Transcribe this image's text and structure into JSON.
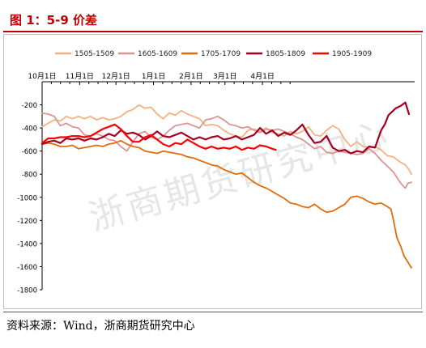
{
  "title": "图 1：5-9 价差",
  "source": "资料来源：Wind，浙商期货研究中心",
  "watermark": "浙商期货研究中心",
  "chart_data": {
    "type": "line",
    "title": "图 1：5-9 价差",
    "xlabel": "",
    "ylabel": "",
    "x_ticks": [
      "10月1日",
      "11月1日",
      "12月1日",
      "1月1日",
      "2月1日",
      "3月1日",
      "4月1日"
    ],
    "ylim": [
      -1800,
      0
    ],
    "y_ticks": [
      -200,
      -400,
      -600,
      -800,
      -1000,
      -1200,
      -1400,
      -1600,
      -1800
    ],
    "grid": false,
    "legend_position": "top",
    "series": [
      {
        "name": "1505-1509",
        "color": "#f4b183",
        "points": [
          [
            0,
            -390
          ],
          [
            5,
            -360
          ],
          [
            10,
            -330
          ],
          [
            15,
            -340
          ],
          [
            20,
            -300
          ],
          [
            25,
            -320
          ],
          [
            30,
            -300
          ],
          [
            35,
            -320
          ],
          [
            40,
            -300
          ],
          [
            45,
            -330
          ],
          [
            50,
            -310
          ],
          [
            55,
            -330
          ],
          [
            60,
            -320
          ],
          [
            65,
            -300
          ],
          [
            70,
            -260
          ],
          [
            75,
            -240
          ],
          [
            80,
            -200
          ],
          [
            85,
            -230
          ],
          [
            90,
            -220
          ],
          [
            95,
            -280
          ],
          [
            100,
            -320
          ],
          [
            105,
            -270
          ],
          [
            110,
            -290
          ],
          [
            115,
            -250
          ],
          [
            120,
            -280
          ],
          [
            125,
            -300
          ],
          [
            130,
            -320
          ],
          [
            135,
            -380
          ],
          [
            140,
            -370
          ],
          [
            145,
            -380
          ],
          [
            150,
            -420
          ],
          [
            155,
            -450
          ],
          [
            160,
            -470
          ],
          [
            165,
            -480
          ],
          [
            170,
            -420
          ],
          [
            175,
            -410
          ],
          [
            180,
            -430
          ],
          [
            185,
            -400
          ],
          [
            190,
            -440
          ],
          [
            195,
            -450
          ],
          [
            200,
            -470
          ],
          [
            205,
            -430
          ],
          [
            210,
            -450
          ],
          [
            215,
            -430
          ],
          [
            220,
            -390
          ],
          [
            225,
            -460
          ],
          [
            230,
            -470
          ],
          [
            235,
            -420
          ],
          [
            240,
            -380
          ],
          [
            245,
            -410
          ],
          [
            250,
            -500
          ],
          [
            255,
            -560
          ],
          [
            260,
            -520
          ],
          [
            265,
            -560
          ],
          [
            270,
            -570
          ],
          [
            275,
            -560
          ],
          [
            280,
            -590
          ],
          [
            285,
            -640
          ],
          [
            290,
            -650
          ],
          [
            295,
            -690
          ],
          [
            300,
            -720
          ],
          [
            303,
            -760
          ],
          [
            305,
            -800
          ]
        ]
      },
      {
        "name": "1605-1609",
        "color": "#d99594",
        "points": [
          [
            0,
            -270
          ],
          [
            5,
            -280
          ],
          [
            10,
            -300
          ],
          [
            15,
            -380
          ],
          [
            20,
            -360
          ],
          [
            25,
            -390
          ],
          [
            30,
            -400
          ],
          [
            35,
            -460
          ],
          [
            40,
            -470
          ],
          [
            45,
            -450
          ],
          [
            50,
            -470
          ],
          [
            55,
            -500
          ],
          [
            60,
            -510
          ],
          [
            65,
            -560
          ],
          [
            70,
            -600
          ],
          [
            75,
            -520
          ],
          [
            80,
            -450
          ],
          [
            85,
            -430
          ],
          [
            90,
            -480
          ],
          [
            95,
            -500
          ],
          [
            100,
            -470
          ],
          [
            105,
            -420
          ],
          [
            110,
            -380
          ],
          [
            115,
            -370
          ],
          [
            120,
            -360
          ],
          [
            125,
            -380
          ],
          [
            130,
            -400
          ],
          [
            135,
            -330
          ],
          [
            140,
            -320
          ],
          [
            145,
            -300
          ],
          [
            150,
            -330
          ],
          [
            155,
            -370
          ],
          [
            160,
            -380
          ],
          [
            165,
            -400
          ],
          [
            170,
            -390
          ],
          [
            175,
            -420
          ],
          [
            180,
            -440
          ],
          [
            185,
            -410
          ],
          [
            190,
            -420
          ],
          [
            195,
            -410
          ],
          [
            200,
            -430
          ],
          [
            205,
            -450
          ],
          [
            210,
            -480
          ],
          [
            215,
            -500
          ],
          [
            220,
            -540
          ],
          [
            225,
            -580
          ],
          [
            230,
            -560
          ],
          [
            235,
            -610
          ],
          [
            240,
            -620
          ],
          [
            245,
            -600
          ],
          [
            250,
            -610
          ],
          [
            255,
            -620
          ],
          [
            260,
            -630
          ],
          [
            265,
            -620
          ],
          [
            270,
            -580
          ],
          [
            275,
            -620
          ],
          [
            280,
            -680
          ],
          [
            285,
            -730
          ],
          [
            290,
            -780
          ],
          [
            295,
            -860
          ],
          [
            298,
            -900
          ],
          [
            300,
            -920
          ],
          [
            302,
            -880
          ],
          [
            305,
            -870
          ]
        ]
      },
      {
        "name": "1705-1709",
        "color": "#e36c09",
        "points": [
          [
            0,
            -540
          ],
          [
            5,
            -530
          ],
          [
            10,
            -540
          ],
          [
            15,
            -560
          ],
          [
            20,
            -560
          ],
          [
            25,
            -550
          ],
          [
            30,
            -580
          ],
          [
            35,
            -570
          ],
          [
            40,
            -560
          ],
          [
            45,
            -550
          ],
          [
            50,
            -560
          ],
          [
            55,
            -540
          ],
          [
            60,
            -530
          ],
          [
            65,
            -510
          ],
          [
            70,
            -540
          ],
          [
            75,
            -560
          ],
          [
            80,
            -570
          ],
          [
            85,
            -600
          ],
          [
            90,
            -610
          ],
          [
            95,
            -620
          ],
          [
            100,
            -600
          ],
          [
            105,
            -610
          ],
          [
            110,
            -620
          ],
          [
            115,
            -630
          ],
          [
            120,
            -650
          ],
          [
            125,
            -660
          ],
          [
            130,
            -680
          ],
          [
            135,
            -700
          ],
          [
            140,
            -720
          ],
          [
            145,
            -730
          ],
          [
            150,
            -760
          ],
          [
            155,
            -780
          ],
          [
            160,
            -800
          ],
          [
            165,
            -790
          ],
          [
            170,
            -830
          ],
          [
            175,
            -870
          ],
          [
            180,
            -900
          ],
          [
            185,
            -920
          ],
          [
            190,
            -950
          ],
          [
            195,
            -980
          ],
          [
            200,
            -1010
          ],
          [
            205,
            -1050
          ],
          [
            210,
            -1060
          ],
          [
            215,
            -1080
          ],
          [
            220,
            -1090
          ],
          [
            225,
            -1060
          ],
          [
            230,
            -1100
          ],
          [
            235,
            -1130
          ],
          [
            240,
            -1120
          ],
          [
            245,
            -1090
          ],
          [
            250,
            -1060
          ],
          [
            255,
            -1000
          ],
          [
            260,
            -990
          ],
          [
            265,
            -1010
          ],
          [
            270,
            -1040
          ],
          [
            275,
            -1060
          ],
          [
            280,
            -1050
          ],
          [
            285,
            -1080
          ],
          [
            288,
            -1100
          ],
          [
            290,
            -1190
          ],
          [
            293,
            -1350
          ],
          [
            296,
            -1420
          ],
          [
            299,
            -1510
          ],
          [
            302,
            -1560
          ],
          [
            305,
            -1610
          ]
        ]
      },
      {
        "name": "1805-1809",
        "color": "#a50021",
        "points": [
          [
            0,
            -540
          ],
          [
            5,
            -520
          ],
          [
            10,
            -510
          ],
          [
            15,
            -530
          ],
          [
            20,
            -490
          ],
          [
            25,
            -500
          ],
          [
            30,
            -490
          ],
          [
            35,
            -510
          ],
          [
            40,
            -490
          ],
          [
            45,
            -500
          ],
          [
            50,
            -480
          ],
          [
            55,
            -450
          ],
          [
            60,
            -470
          ],
          [
            65,
            -420
          ],
          [
            70,
            -450
          ],
          [
            75,
            -440
          ],
          [
            80,
            -460
          ],
          [
            85,
            -500
          ],
          [
            90,
            -470
          ],
          [
            95,
            -430
          ],
          [
            100,
            -470
          ],
          [
            105,
            -480
          ],
          [
            110,
            -460
          ],
          [
            115,
            -440
          ],
          [
            120,
            -470
          ],
          [
            125,
            -500
          ],
          [
            130,
            -480
          ],
          [
            135,
            -500
          ],
          [
            140,
            -480
          ],
          [
            145,
            -470
          ],
          [
            150,
            -500
          ],
          [
            155,
            -490
          ],
          [
            160,
            -470
          ],
          [
            165,
            -500
          ],
          [
            170,
            -480
          ],
          [
            175,
            -460
          ],
          [
            180,
            -400
          ],
          [
            185,
            -450
          ],
          [
            190,
            -420
          ],
          [
            195,
            -470
          ],
          [
            200,
            -440
          ],
          [
            205,
            -460
          ],
          [
            210,
            -420
          ],
          [
            215,
            -370
          ],
          [
            220,
            -460
          ],
          [
            225,
            -530
          ],
          [
            230,
            -520
          ],
          [
            235,
            -470
          ],
          [
            240,
            -570
          ],
          [
            245,
            -600
          ],
          [
            250,
            -590
          ],
          [
            255,
            -620
          ],
          [
            260,
            -600
          ],
          [
            265,
            -610
          ],
          [
            270,
            -560
          ],
          [
            275,
            -570
          ],
          [
            280,
            -420
          ],
          [
            283,
            -370
          ],
          [
            286,
            -290
          ],
          [
            289,
            -260
          ],
          [
            292,
            -230
          ],
          [
            296,
            -210
          ],
          [
            300,
            -180
          ],
          [
            303,
            -280
          ]
        ]
      },
      {
        "name": "1905-1909",
        "color": "#ff0000",
        "points": [
          [
            0,
            -530
          ],
          [
            5,
            -490
          ],
          [
            10,
            -490
          ],
          [
            15,
            -480
          ],
          [
            20,
            -480
          ],
          [
            25,
            -470
          ],
          [
            30,
            -470
          ],
          [
            35,
            -480
          ],
          [
            40,
            -470
          ],
          [
            45,
            -440
          ],
          [
            50,
            -410
          ],
          [
            55,
            -390
          ],
          [
            60,
            -370
          ],
          [
            65,
            -410
          ],
          [
            70,
            -470
          ],
          [
            75,
            -520
          ],
          [
            80,
            -520
          ],
          [
            85,
            -480
          ],
          [
            90,
            -460
          ],
          [
            95,
            -500
          ],
          [
            100,
            -540
          ],
          [
            105,
            -560
          ],
          [
            110,
            -530
          ],
          [
            115,
            -540
          ],
          [
            120,
            -500
          ],
          [
            125,
            -530
          ],
          [
            130,
            -560
          ],
          [
            135,
            -580
          ],
          [
            140,
            -560
          ],
          [
            145,
            -580
          ],
          [
            150,
            -570
          ],
          [
            155,
            -580
          ],
          [
            160,
            -560
          ],
          [
            165,
            -590
          ],
          [
            170,
            -570
          ],
          [
            175,
            -580
          ],
          [
            180,
            -550
          ],
          [
            185,
            -560
          ],
          [
            190,
            -580
          ],
          [
            193,
            -590
          ]
        ]
      }
    ]
  }
}
